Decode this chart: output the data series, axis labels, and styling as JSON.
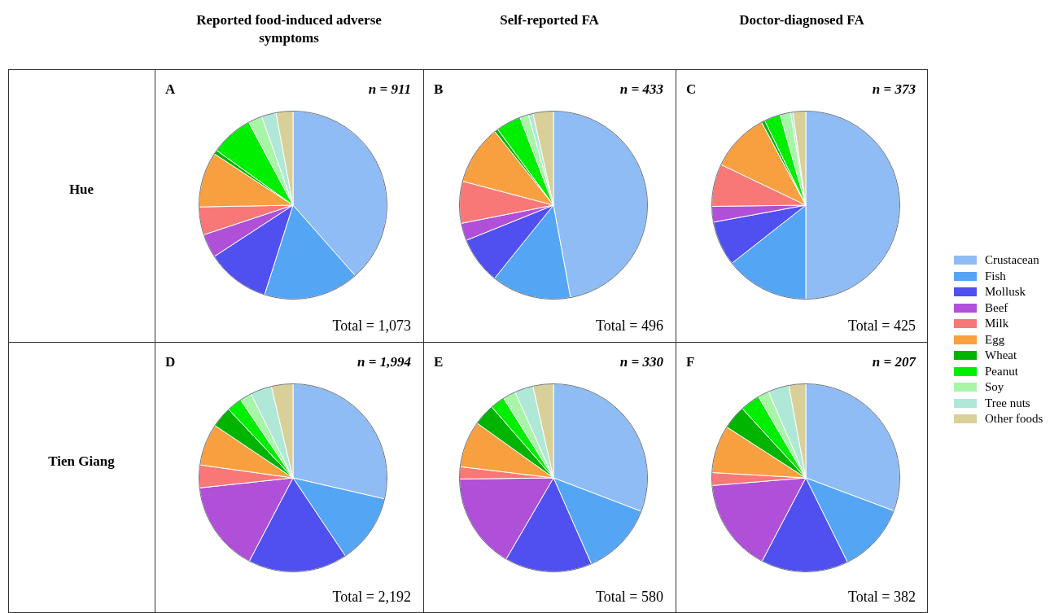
{
  "chart_data": [
    {
      "type": "pie",
      "title": "Reported food-induced adverse symptoms",
      "ylabel": "Hue",
      "categories": [
        null,
        null,
        null,
        null,
        null,
        null,
        null,
        null,
        null,
        null,
        null
      ],
      "values": [
        38.5,
        16.4,
        10.9,
        4.1,
        4.8,
        9.5,
        0.7,
        7.3,
        2.4,
        2.5,
        2.9
      ],
      "colors": [
        "#8fbcf5",
        "#55a5f5",
        "#5050f0",
        "#b050d8",
        "#f87878",
        "#f8a040",
        "#00b400",
        "#00ee00",
        "#a8f5a8",
        "#b0e8d8",
        "#d8d098"
      ],
      "annotations": [
        "A",
        "n = 911",
        "Total = 1,073"
      ]
    },
    {
      "type": "pie",
      "title": "Self-reported FA",
      "categories": [
        null,
        null,
        null,
        null,
        null,
        null,
        null,
        null,
        null,
        null,
        null
      ],
      "values": [
        47.1,
        13.7,
        8.1,
        3.0,
        7.2,
        10.2,
        0.6,
        4.3,
        1.5,
        0.8,
        3.5
      ],
      "colors": [
        "#8fbcf5",
        "#55a5f5",
        "#5050f0",
        "#b050d8",
        "#f87878",
        "#f8a040",
        "#00b400",
        "#00ee00",
        "#a8f5a8",
        "#b0e8d8",
        "#d8d098"
      ],
      "annotations": [
        "B",
        "n = 433",
        "Total = 496"
      ]
    },
    {
      "type": "pie",
      "title": "Doctor-diagnosed FA",
      "legend": "right",
      "categories": [
        "Crustacean",
        "Fish",
        "Mollusk",
        "Beef",
        "Milk",
        "Egg",
        "Wheat",
        "Peanut",
        "Soy",
        "Tree nuts",
        "Other foods"
      ],
      "values": [
        50.0,
        14.4,
        7.7,
        2.7,
        7.3,
        10.1,
        0.6,
        2.8,
        1.8,
        0.4,
        2.2
      ],
      "colors": [
        "#8fbcf5",
        "#55a5f5",
        "#5050f0",
        "#b050d8",
        "#f87878",
        "#f8a040",
        "#00b400",
        "#00ee00",
        "#a8f5a8",
        "#b0e8d8",
        "#d8d098"
      ],
      "annotations": [
        "C",
        "n = 373",
        "Total = 425"
      ]
    },
    {
      "type": "pie",
      "ylabel": "Tien Giang",
      "categories": [
        null,
        null,
        null,
        null,
        null,
        null,
        null,
        null,
        null,
        null,
        null
      ],
      "values": [
        28.6,
        12.0,
        17.1,
        15.6,
        3.9,
        7.2,
        3.6,
        2.6,
        2.0,
        3.7,
        3.7
      ],
      "colors": [
        "#8fbcf5",
        "#55a5f5",
        "#5050f0",
        "#b050d8",
        "#f87878",
        "#f8a040",
        "#00b400",
        "#00ee00",
        "#a8f5a8",
        "#b0e8d8",
        "#d8d098"
      ],
      "annotations": [
        "D",
        "n = 1,994",
        "Total = 2,192"
      ]
    },
    {
      "type": "pie",
      "categories": [
        null,
        null,
        null,
        null,
        null,
        null,
        null,
        null,
        null,
        null,
        null
      ],
      "values": [
        30.8,
        12.6,
        15.0,
        16.4,
        2.1,
        8.0,
        3.7,
        2.5,
        2.2,
        3.2,
        3.5
      ],
      "colors": [
        "#8fbcf5",
        "#55a5f5",
        "#5050f0",
        "#b050d8",
        "#f87878",
        "#f8a040",
        "#00b400",
        "#00ee00",
        "#a8f5a8",
        "#b0e8d8",
        "#d8d098"
      ],
      "annotations": [
        "E",
        "n = 330",
        "Total = 580"
      ]
    },
    {
      "type": "pie",
      "categories": [
        null,
        null,
        null,
        null,
        null,
        null,
        null,
        null,
        null,
        null,
        null
      ],
      "values": [
        30.7,
        12.0,
        15.0,
        16.0,
        2.2,
        8.2,
        4.1,
        3.4,
        1.9,
        3.6,
        2.9
      ],
      "colors": [
        "#8fbcf5",
        "#55a5f5",
        "#5050f0",
        "#b050d8",
        "#f87878",
        "#f8a040",
        "#00b400",
        "#00ee00",
        "#a8f5a8",
        "#b0e8d8",
        "#d8d098"
      ],
      "annotations": [
        "F",
        "n = 207",
        "Total = 382"
      ]
    }
  ]
}
